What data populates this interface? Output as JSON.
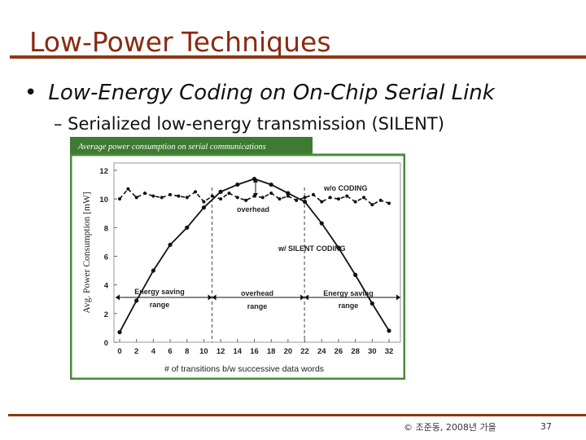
{
  "slide": {
    "title": "Low-Power Techniques",
    "bullet_1": "Low-Energy Coding on On-Chip Serial Link",
    "bullet_2": "– Serialized low-energy transmission (SILENT)",
    "footer_copyright": "© 조준동, 2008년 가을",
    "page_number": "37"
  },
  "colors": {
    "title": "#8b2a10",
    "rule": "#8b3a14",
    "figure_header_bg": "#3f7a32",
    "figure_border": "#4a8a3a"
  },
  "chart_data": {
    "type": "line",
    "title": "Average power consumption on serial communications",
    "xlabel": "# of transitions b/w successive data words",
    "ylabel": "Avg. Power Consumption [mW]",
    "x_ticks": [
      "0",
      "2",
      "4",
      "6",
      "8",
      "10",
      "12",
      "14",
      "16",
      "18",
      "20",
      "22",
      "24",
      "26",
      "28",
      "30",
      "32"
    ],
    "y_ticks": [
      "0",
      "2",
      "4",
      "6",
      "8",
      "10",
      "12"
    ],
    "xlim": [
      0,
      32
    ],
    "ylim": [
      0,
      12
    ],
    "grid": false,
    "series": [
      {
        "name": "w/o CODING",
        "style": "dashed",
        "x": [
          0,
          1,
          2,
          3,
          4,
          5,
          6,
          7,
          8,
          9,
          10,
          11,
          12,
          13,
          14,
          15,
          16,
          17,
          18,
          19,
          20,
          21,
          22,
          23,
          24,
          25,
          26,
          27,
          28,
          29,
          30,
          31,
          32
        ],
        "y": [
          10,
          10.7,
          10.1,
          10.4,
          10.2,
          10.1,
          10.3,
          10.2,
          10.1,
          10.5,
          9.8,
          10.2,
          10.0,
          10.4,
          10.1,
          9.9,
          10.2,
          10.1,
          10.4,
          10.0,
          10.2,
          9.9,
          10.1,
          10.3,
          9.8,
          10.1,
          10.0,
          10.2,
          9.8,
          10.1,
          9.6,
          9.9,
          9.7
        ]
      },
      {
        "name": "w/ SILENT CODING",
        "style": "solid",
        "x": [
          0,
          2,
          4,
          6,
          8,
          10,
          12,
          14,
          16,
          18,
          20,
          22,
          24,
          26,
          28,
          30,
          32
        ],
        "y": [
          0.7,
          2.9,
          5.0,
          6.8,
          8.0,
          9.4,
          10.5,
          11.0,
          11.4,
          11.0,
          10.4,
          9.8,
          8.3,
          6.6,
          4.7,
          2.7,
          0.8
        ]
      }
    ],
    "annotations": [
      {
        "text": "w/o CODING"
      },
      {
        "text": "overhead"
      },
      {
        "text": "w/ SILENT CODING"
      },
      {
        "text": "Energy saving"
      },
      {
        "text": "range"
      },
      {
        "text": "overhead"
      },
      {
        "text": "range"
      },
      {
        "text": "Energy saving"
      },
      {
        "text": "range"
      }
    ]
  }
}
